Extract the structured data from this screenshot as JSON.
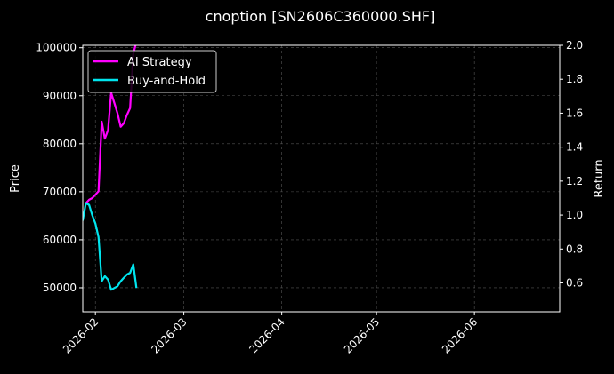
{
  "chart_data": {
    "type": "line",
    "title": "cnoption [SN2606C360000.SHF]",
    "ylabel": "Price",
    "y2label": "Return",
    "xlim": [
      "2026-01-28",
      "2026-06-28"
    ],
    "ylim": [
      45000,
      100500
    ],
    "y2lim": [
      0.43,
      2.0
    ],
    "grid": true,
    "legend_position": "top-left",
    "x_ticks": [
      "2026-02",
      "2026-03",
      "2026-04",
      "2026-05",
      "2026-06"
    ],
    "y_ticks": [
      "50000",
      "60000",
      "70000",
      "80000",
      "90000",
      "100000"
    ],
    "y2_ticks": [
      "0.6",
      "0.8",
      "1.0",
      "1.2",
      "1.4",
      "1.6",
      "1.8",
      "2.0"
    ],
    "colors": {
      "ai": "#ff00ff",
      "bh": "#00e5ee",
      "price": "#cc0033",
      "grid": "#555555"
    },
    "series": [
      {
        "name": "AI Strategy",
        "axis": "right",
        "color": "#ff00ff",
        "x": [
          "2026-01-29",
          "2026-01-30",
          "2026-01-31",
          "2026-02-01",
          "2026-02-02",
          "2026-02-03",
          "2026-02-04",
          "2026-02-05",
          "2026-02-06",
          "2026-02-07",
          "2026-02-08",
          "2026-02-09",
          "2026-02-10",
          "2026-02-11",
          "2026-02-12",
          "2026-02-13",
          "2026-02-14"
        ],
        "values": [
          1.07,
          1.09,
          1.1,
          1.12,
          1.14,
          1.55,
          1.45,
          1.5,
          1.72,
          1.66,
          1.6,
          1.52,
          1.54,
          1.59,
          1.63,
          1.95,
          2.02
        ]
      },
      {
        "name": "Buy-and-Hold",
        "axis": "right",
        "color": "#00e5ee",
        "x": [
          "2026-01-27",
          "2026-01-28",
          "2026-01-29",
          "2026-01-30",
          "2026-01-31",
          "2026-02-01",
          "2026-02-02",
          "2026-02-03",
          "2026-02-04",
          "2026-02-05",
          "2026-02-06",
          "2026-02-07",
          "2026-02-08",
          "2026-02-09",
          "2026-02-10",
          "2026-02-11",
          "2026-02-12",
          "2026-02-13",
          "2026-02-14"
        ],
        "values": [
          1.0,
          0.97,
          1.07,
          1.06,
          1.0,
          0.95,
          0.87,
          0.61,
          0.64,
          0.62,
          0.56,
          0.57,
          0.58,
          0.61,
          0.63,
          0.65,
          0.66,
          0.71,
          0.57
        ]
      }
    ]
  }
}
